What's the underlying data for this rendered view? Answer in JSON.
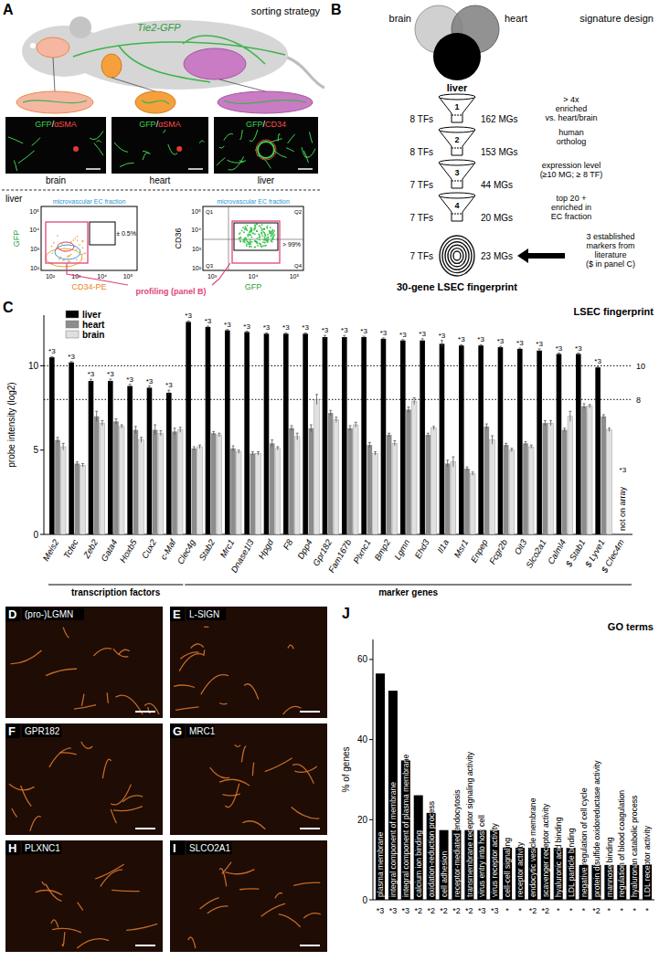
{
  "panel_a": {
    "letter": "A",
    "title": "sorting strategy",
    "transgene": "Tie2-GFP",
    "micrographs": [
      {
        "label": [
          "GFP",
          "/",
          "αSMA"
        ],
        "organ": "brain"
      },
      {
        "label": [
          "GFP",
          "/",
          "αSMA"
        ],
        "organ": "heart"
      },
      {
        "label": [
          "GFP",
          "/",
          "CD34"
        ],
        "organ": "liver"
      }
    ],
    "flow_section_label": "liver",
    "flow_plots": [
      {
        "x_label": "CD34-PE",
        "y_label": "GFP",
        "x_ticks": [
          "10²",
          "10³",
          "10⁴",
          "10⁵"
        ],
        "y_ticks": [
          "10²",
          "10³",
          "10⁴",
          "10⁵"
        ],
        "gate_label": "microvascular EC fraction",
        "gate_percent": "± 0.5%"
      },
      {
        "x_label": "GFP",
        "y_label": "CD36",
        "x_ticks": [
          "10³",
          "10⁴",
          "10⁵"
        ],
        "y_ticks": [
          "10²",
          "10³",
          "10⁴",
          "10⁵"
        ],
        "gate_label": "microvascular EC fraction",
        "gate_percent": "> 99%",
        "quadrants": [
          "Q1",
          "Q2",
          "Q3",
          "Q4"
        ]
      }
    ],
    "profiling_label": "profiling (panel B)"
  },
  "panel_b": {
    "letter": "B",
    "title": "signature design",
    "sets": [
      "brain",
      "heart",
      "liver"
    ],
    "steps": [
      {
        "number": "1",
        "criterion": [
          "> 4x",
          "enriched",
          "vs. heart/brain"
        ],
        "tfs": "8 TFs",
        "mgs": "162 MGs"
      },
      {
        "number": "2",
        "criterion": [
          "human",
          "ortholog"
        ],
        "tfs": "8 TFs",
        "mgs": "153 MGs"
      },
      {
        "number": "3",
        "criterion": [
          "expression level",
          "(≥10 MG; ≥ 8 TF)"
        ],
        "tfs": "7 TFs",
        "mgs": "44 MGs"
      },
      {
        "number": "4",
        "criterion": [
          "top 20 +",
          "enriched in",
          "EC fraction"
        ],
        "tfs": "7 TFs",
        "mgs": "20 MGs"
      }
    ],
    "addition": [
      "3 established",
      "markers from",
      "literature",
      "($ in panel C)"
    ],
    "final": {
      "tfs": "7 TFs",
      "mgs": "23 MGs"
    },
    "result": "30-gene LSEC fingerprint"
  },
  "chart_data": [
    {
      "type": "bar",
      "letter": "C",
      "title": "LSEC fingerprint",
      "y_label": "probe intensity (log2)",
      "categories": [
        "Meis2",
        "Tcfec",
        "Zeb2",
        "Gata4",
        "Hoxb5",
        "Cux2",
        "c-Maf",
        "Clec4g",
        "Stab2",
        "Mrc1",
        "Dnase1l3",
        "Hpgd",
        "F8",
        "Dpp4",
        "Gpr182",
        "Fam167b",
        "Plxnc1",
        "Bmp2",
        "Lgmn",
        "Ehd3",
        "Il1a",
        "Msr1",
        "Enpep",
        "Fcgr2b",
        "Oit3",
        "Slco2a1",
        "Calml4",
        "$ Stab1",
        "$ Lyve1",
        "$ Clec4m"
      ],
      "series": [
        {
          "name": "liver",
          "color": "#000000",
          "values": [
            10.5,
            10.2,
            9.1,
            9.1,
            8.8,
            8.7,
            8.4,
            12.6,
            12.3,
            12.1,
            12.0,
            11.9,
            11.9,
            11.9,
            11.7,
            11.7,
            11.7,
            11.6,
            11.5,
            11.5,
            11.3,
            11.2,
            11.2,
            11.1,
            11.0,
            10.9,
            10.7,
            10.7,
            9.9,
            null
          ],
          "errors": [
            0.05,
            0.05,
            0.1,
            0.1,
            0.1,
            0.1,
            0.15,
            0.05,
            0.05,
            0.05,
            0.05,
            0.05,
            0.05,
            0.05,
            0.1,
            0.1,
            0.05,
            0.05,
            0.05,
            0.1,
            0.2,
            0.05,
            0.05,
            0.05,
            0.05,
            0.1,
            0.05,
            0.05,
            0.05,
            null
          ]
        },
        {
          "name": "heart",
          "color": "#8c8c8c",
          "values": [
            5.6,
            4.2,
            7.0,
            6.7,
            6.2,
            6.2,
            6.1,
            5.1,
            6.0,
            5.1,
            4.8,
            5.4,
            6.3,
            6.3,
            7.2,
            6.3,
            5.3,
            5.9,
            7.4,
            5.9,
            4.2,
            3.9,
            6.4,
            5.3,
            5.4,
            6.6,
            6.2,
            7.6,
            7.0,
            null
          ],
          "errors": [
            0.15,
            0.1,
            0.3,
            0.15,
            0.2,
            0.3,
            0.2,
            0.1,
            0.1,
            0.15,
            0.1,
            0.2,
            0.15,
            0.2,
            0.15,
            0.15,
            0.15,
            0.1,
            0.15,
            0.1,
            0.2,
            0.1,
            0.15,
            0.1,
            0.1,
            0.15,
            0.1,
            0.15,
            0.1,
            null
          ]
        },
        {
          "name": "brain",
          "color": "#e0e0e0",
          "values": [
            5.2,
            4.1,
            6.6,
            6.4,
            5.6,
            6.0,
            6.2,
            5.2,
            5.9,
            4.9,
            4.8,
            5.1,
            5.8,
            8.0,
            6.8,
            6.5,
            4.8,
            5.4,
            7.9,
            6.3,
            4.3,
            3.6,
            5.6,
            5.0,
            5.2,
            6.6,
            7.0,
            7.6,
            6.2,
            null
          ],
          "errors": [
            0.2,
            0.1,
            0.15,
            0.1,
            0.15,
            0.15,
            0.15,
            0.1,
            0.1,
            0.1,
            0.1,
            0.1,
            0.2,
            0.3,
            0.15,
            0.15,
            0.1,
            0.15,
            0.2,
            0.1,
            0.3,
            0.1,
            0.25,
            0.1,
            0.1,
            0.15,
            0.3,
            0.1,
            0.1,
            null
          ]
        }
      ],
      "ylim": [
        0,
        13
      ],
      "yticks": [
        0,
        5,
        10
      ],
      "reference_lines": [
        10,
        8
      ],
      "significance_labels": [
        "*3",
        "*3",
        "*3",
        "*3",
        "*3",
        "*3",
        "*3",
        "*3",
        "*3",
        "*3",
        "*3",
        "*3",
        "*3",
        "*3",
        "*3",
        "*3",
        "*3",
        "*3",
        "*3",
        "*3",
        "*3",
        "*3",
        "*3",
        "*3",
        "*3",
        "*3",
        "*3",
        "*3",
        "*3",
        "*3"
      ],
      "groups": [
        {
          "label": "transcription factors",
          "start": 0,
          "end": 6
        },
        {
          "label": "marker genes",
          "start": 7,
          "end": 29
        }
      ],
      "missing_label": "not on array",
      "legend": "upper left"
    },
    {
      "type": "bar",
      "letter": "J",
      "title": "GO terms",
      "y_label": "% of genes",
      "categories": [
        "plasma membrane",
        "integral component of membrane",
        "integral component of plasma membrane",
        "calcium ion binding",
        "oxidation-reduction process",
        "cell adhesion",
        "receptor-mediated endocytosis",
        "transmembrane receptor signaling activity",
        "virus entry into host cell",
        "virus receptor activity",
        "cell-cell signaling",
        "receptor activity",
        "endocytic vesicle membrane",
        "scavenger receptor activity",
        "hyaluronic acid binding",
        "LDL particle binding",
        "negative regulation of cell cycle",
        "protein disulfide oxidoreductase activity",
        "mannose binding",
        "regulation of blood coagulation",
        "hyaluronan catabolic process",
        "LDL receptor activity"
      ],
      "values": [
        56.5,
        52.2,
        34.8,
        26.1,
        21.7,
        17.4,
        17.4,
        17.4,
        17.4,
        17.4,
        13.0,
        13.0,
        13.0,
        13.0,
        13.0,
        13.0,
        8.7,
        8.7,
        8.7,
        8.7,
        8.7,
        8.7
      ],
      "color": "#000000",
      "ylim": [
        0,
        65
      ],
      "yticks": [
        0,
        20,
        40,
        60
      ],
      "significance_labels": [
        "*3",
        "*3",
        "*3",
        "*2",
        "*2",
        "*2",
        "*2",
        "*2",
        "*3",
        "*3",
        "*",
        "*",
        "*2",
        "*2",
        "*",
        "*",
        "*",
        "*2",
        "*",
        "*",
        "*",
        "*"
      ]
    }
  ],
  "panels_d_i": [
    {
      "letter": "D",
      "label": "(pro-)LGMN"
    },
    {
      "letter": "E",
      "label": "L-SIGN"
    },
    {
      "letter": "F",
      "label": "GPR182"
    },
    {
      "letter": "G",
      "label": "MRC1"
    },
    {
      "letter": "H",
      "label": "PLXNC1"
    },
    {
      "letter": "I",
      "label": "SLCO2A1"
    }
  ]
}
